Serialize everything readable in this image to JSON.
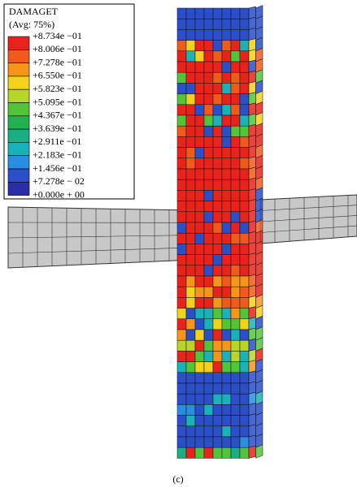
{
  "legend": {
    "title": "DAMAGET",
    "subtitle": "(Avg: 75%)",
    "labels": [
      "+8.734e −01",
      "+8.006e −01",
      "+7.278e −01",
      "+6.550e −01",
      "+5.823e −01",
      "+5.095e −01",
      "+4.367e −01",
      "+3.639e −01",
      "+2.911e −01",
      "+2.183e −01",
      "+1.456e −01",
      "+7.278e − 02",
      "+0.000e + 00"
    ]
  },
  "caption": "(c)"
}
